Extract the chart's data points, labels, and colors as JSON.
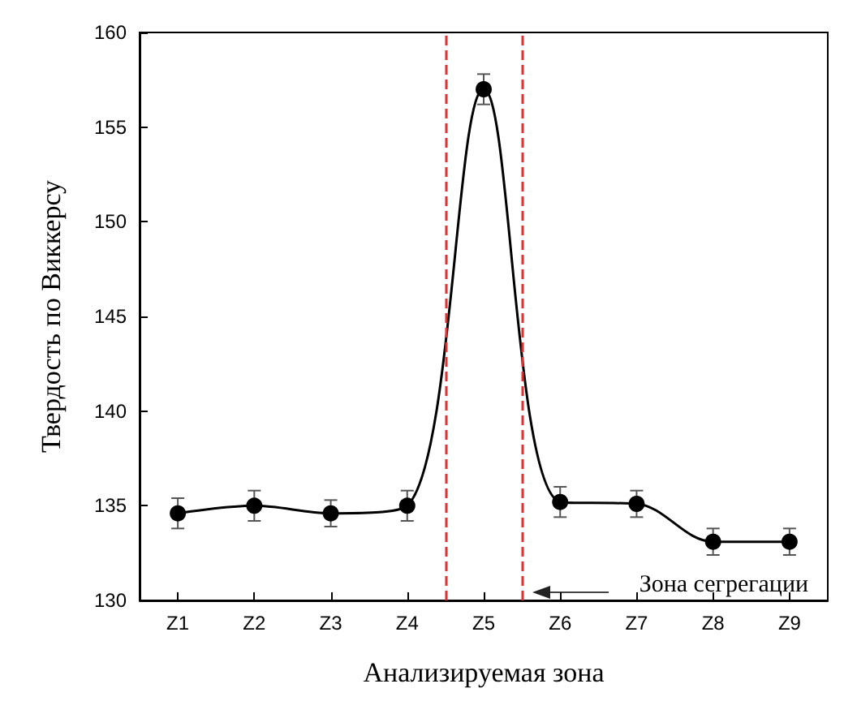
{
  "chart_data": {
    "type": "line",
    "xlabel": "Анализируемая зона",
    "ylabel": "Твердость по Виккерсу",
    "categories": [
      "Z1",
      "Z2",
      "Z3",
      "Z4",
      "Z5",
      "Z6",
      "Z7",
      "Z8",
      "Z9"
    ],
    "series": [
      {
        "color": "#000000",
        "values": [
          134.6,
          135.0,
          134.6,
          135.0,
          157.0,
          135.2,
          135.1,
          133.1,
          133.1
        ],
        "errors": [
          0.8,
          0.8,
          0.7,
          0.8,
          0.8,
          0.8,
          0.7,
          0.7,
          0.7
        ]
      }
    ],
    "ylim": [
      130,
      160
    ],
    "yticks": [
      130,
      135,
      140,
      145,
      150,
      155,
      160
    ],
    "annotations": [
      "Зона сегрегации"
    ],
    "marker": "circle",
    "line_style": "solid",
    "grid": false
  }
}
